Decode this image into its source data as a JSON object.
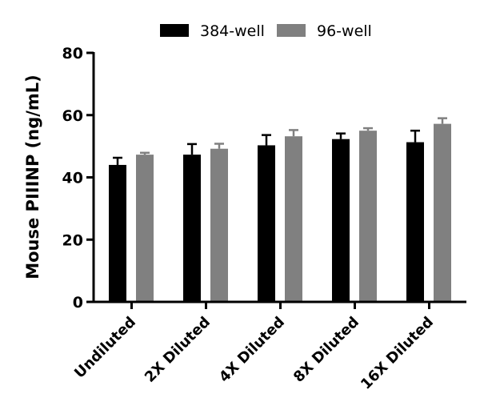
{
  "chart_data": {
    "type": "bar",
    "title": "",
    "xlabel": "",
    "ylabel": "Mouse PIIINP (ng/mL)",
    "ylim": [
      0,
      80
    ],
    "yticks": [
      0,
      20,
      40,
      60,
      80
    ],
    "grid": false,
    "legend_position": "top",
    "categories": [
      "Undiluted",
      "2X Diluted",
      "4X Diluted",
      "8X Diluted",
      "16X Diluted"
    ],
    "series": [
      {
        "name": "384-well",
        "color": "#000000",
        "values": [
          44,
          47.3,
          50.3,
          52.3,
          51.3
        ],
        "errors": [
          2.3,
          3.4,
          3.3,
          1.8,
          3.7
        ]
      },
      {
        "name": "96-well",
        "color": "#808080",
        "values": [
          47.3,
          49.2,
          53.2,
          55.0,
          57.2
        ],
        "errors": [
          0.6,
          1.6,
          2.0,
          0.8,
          1.8
        ]
      }
    ]
  }
}
